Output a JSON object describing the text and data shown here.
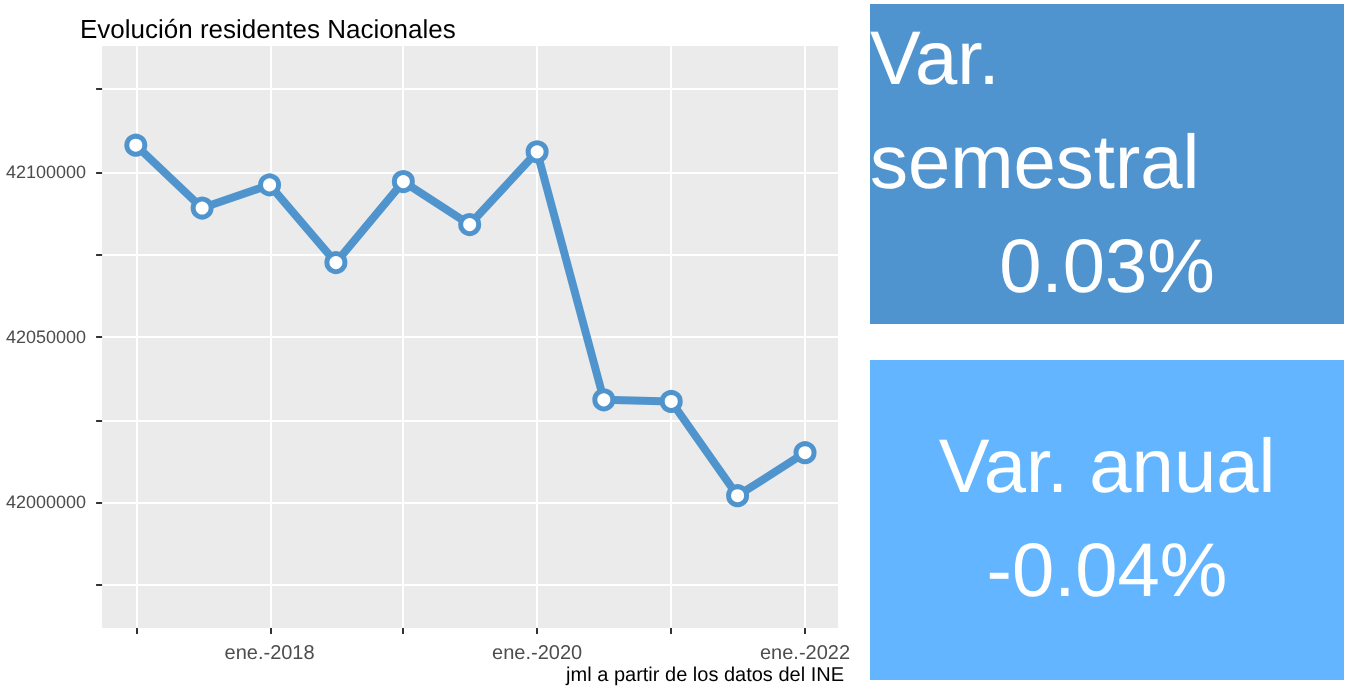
{
  "chart_data": [
    {
      "type": "line",
      "title": "Evolución residentes Nacionales",
      "annotations": [
        "jml a partir de los datos del INE"
      ],
      "x": [
        "2017-01",
        "2017-07",
        "2018-01",
        "2018-07",
        "2019-01",
        "2019-07",
        "2020-01",
        "2020-07",
        "2021-01",
        "2021-07",
        "2022-01"
      ],
      "series": [
        {
          "color": "#4f94cd",
          "values": [
            42108000,
            42089000,
            42096000,
            42072500,
            42097000,
            42084000,
            42106000,
            42031000,
            42030500,
            42002000,
            42015000
          ]
        }
      ],
      "xlim": [
        "2016-10-01",
        "2022-04-01"
      ],
      "xticks": [
        {
          "value": "2017-01",
          "label": null
        },
        {
          "value": "2018-01",
          "label": "ene.-2018"
        },
        {
          "value": "2019-01",
          "label": null
        },
        {
          "value": "2020-01",
          "label": "ene.-2020"
        },
        {
          "value": "2021-01",
          "label": null
        },
        {
          "value": "2022-01",
          "label": "ene.-2022"
        }
      ],
      "ylim": [
        41962000,
        42138000
      ],
      "yticks": [
        {
          "value": 41975000,
          "label": null
        },
        42000000,
        {
          "value": 42025000,
          "label": null
        },
        42050000,
        {
          "value": 42075000,
          "label": null
        },
        42100000,
        {
          "value": 42125000,
          "label": null
        }
      ],
      "grid": true,
      "marker": "circle",
      "line_style": "solid"
    },
    {
      "type": "other",
      "title": "Var. semestral",
      "annotations": [
        "0.03%"
      ],
      "color": "#4f94cf"
    },
    {
      "type": "other",
      "title": "Var. anual",
      "annotations": [
        "-0.04%"
      ],
      "color": "#62b5fe"
    }
  ]
}
